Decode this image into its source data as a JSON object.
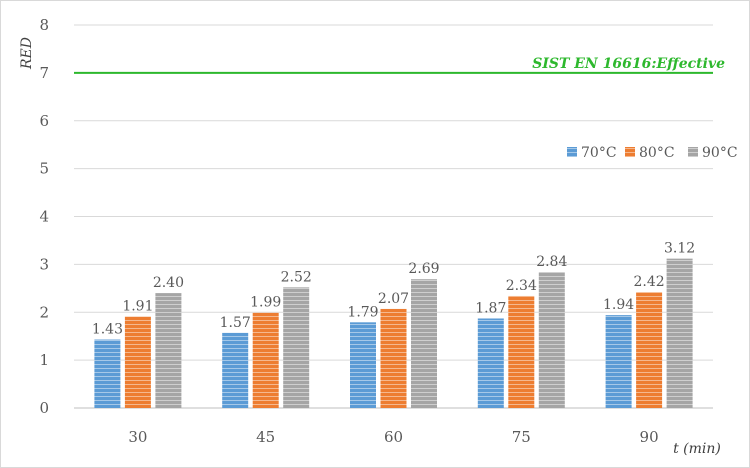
{
  "chart_data": {
    "type": "bar",
    "title": "",
    "xlabel": "t (min)",
    "ylabel": "RED",
    "categories": [
      "30",
      "45",
      "60",
      "75",
      "90"
    ],
    "series": [
      {
        "name": "70°C",
        "values": [
          1.43,
          1.57,
          1.79,
          1.87,
          1.94
        ],
        "color": "#5B9BD5",
        "labels": [
          "1.43",
          "1.57",
          "1.79",
          "1.87",
          "1.94"
        ]
      },
      {
        "name": "80°C",
        "values": [
          1.91,
          1.99,
          2.07,
          2.34,
          2.42
        ],
        "color": "#ED7D31",
        "labels": [
          "1.91",
          "1.99",
          "2.07",
          "2.34",
          "2.42"
        ]
      },
      {
        "name": "90°C",
        "values": [
          2.4,
          2.52,
          2.69,
          2.84,
          3.12
        ],
        "color": "#A5A5A5",
        "labels": [
          "2.40",
          "2.52",
          "2.69",
          "2.84",
          "3.12"
        ]
      }
    ],
    "ylim": [
      0,
      8
    ],
    "yticks": [
      "0",
      "1",
      "2",
      "3",
      "4",
      "5",
      "6",
      "7",
      "8"
    ],
    "grid": true,
    "legend_position": "right",
    "reference_line": {
      "label": "SIST EN 16616:Effective",
      "value": 7,
      "color": "#2DB82D"
    }
  }
}
